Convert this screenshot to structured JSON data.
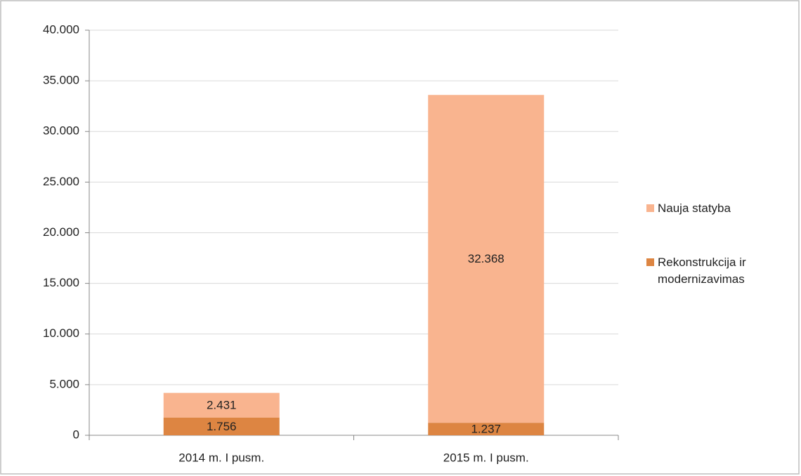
{
  "chart_data": {
    "type": "stacked_bar",
    "categories": [
      "2014 m. I pusm.",
      "2015 m. I pusm."
    ],
    "series": [
      {
        "name": "Rekonstrukcija ir modernizavimas",
        "color": "#dd8542",
        "values": [
          1756,
          1237
        ],
        "value_labels": [
          "1.756",
          "1.237"
        ]
      },
      {
        "name": "Nauja statyba",
        "color": "#f9b48f",
        "values": [
          2431,
          32368
        ],
        "value_labels": [
          "2.431",
          "32.368"
        ]
      }
    ],
    "ylim": [
      0,
      40000
    ],
    "yticks": [
      0,
      {
        "value": 5000,
        "label": "5.000"
      },
      {
        "value": 10000,
        "label": "10.000"
      },
      {
        "value": 15000,
        "label": "15.000"
      },
      {
        "value": 20000,
        "label": "20.000"
      },
      {
        "value": 25000,
        "label": "25.000"
      },
      {
        "value": 30000,
        "label": "30.000"
      },
      {
        "value": 35000,
        "label": "35.000"
      },
      {
        "value": 40000,
        "label": "40.000"
      }
    ],
    "grid": true,
    "legend": "right"
  }
}
